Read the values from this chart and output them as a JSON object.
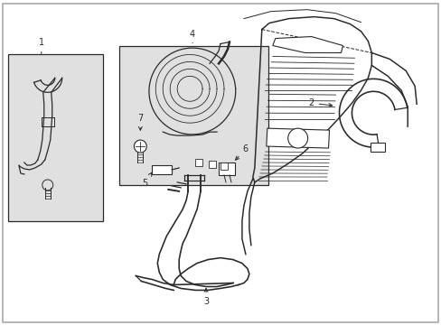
{
  "background_color": "#ffffff",
  "line_color": "#2a2a2a",
  "box_fill": "#e0e0e0",
  "lw": 0.9,
  "figsize": [
    4.89,
    3.6
  ],
  "dpi": 100
}
